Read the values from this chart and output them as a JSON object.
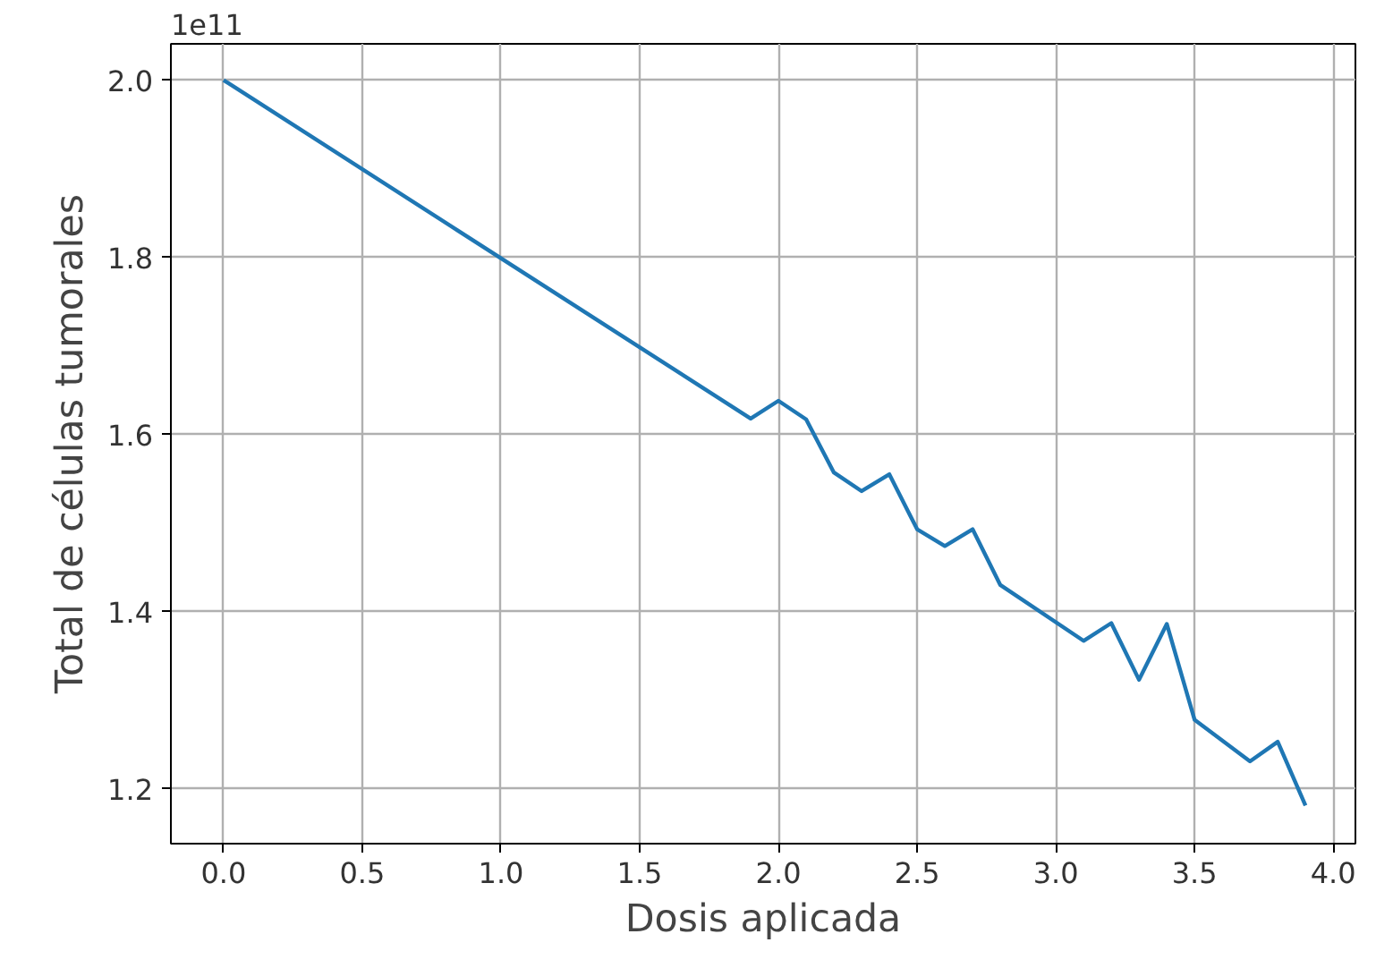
{
  "chart_data": {
    "type": "line",
    "xlabel": "Dosis aplicada",
    "ylabel": "Total de células tumorales",
    "annotations": [
      "1e11"
    ],
    "x": [
      0.0,
      1.9,
      2.0,
      2.1,
      2.2,
      2.3,
      2.4,
      2.5,
      2.6,
      2.7,
      2.8,
      3.1,
      3.2,
      3.3,
      3.4,
      3.5,
      3.7,
      3.8,
      3.9
    ],
    "series": [
      {
        "color": "#1f77b4",
        "values": [
          2.0,
          1.618,
          1.638,
          1.617,
          1.557,
          1.536,
          1.555,
          1.493,
          1.474,
          1.493,
          1.43,
          1.367,
          1.387,
          1.323,
          1.386,
          1.278,
          1.231,
          1.253,
          1.181
        ]
      }
    ],
    "xlim": [
      -0.19,
      4.08
    ],
    "ylim": [
      1.138,
      2.041
    ],
    "xticks": [
      {
        "value": 0,
        "label": "0.0"
      },
      0.5,
      {
        "value": 1,
        "label": "1.0"
      },
      1.5,
      {
        "value": 2,
        "label": "2.0"
      },
      2.5,
      {
        "value": 3,
        "label": "3.0"
      },
      3.5,
      {
        "value": 4,
        "label": "4.0"
      }
    ],
    "yticks": [
      1.2,
      1.4,
      1.6,
      1.8,
      {
        "value": 2,
        "label": "2.0"
      }
    ],
    "grid": true,
    "marker": "none",
    "line_style": "solid"
  }
}
